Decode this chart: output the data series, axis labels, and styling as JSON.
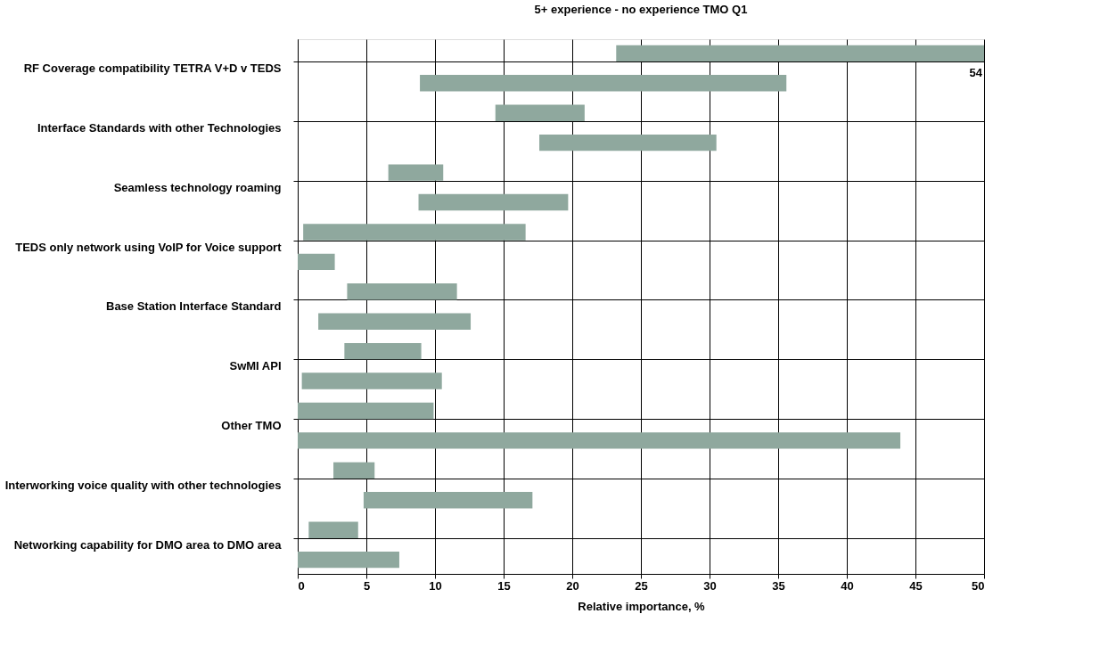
{
  "chart_data": {
    "type": "bar",
    "orientation": "horizontal",
    "title": "5+ experience -  no experience TMO Q1",
    "xlabel": "Relative importance, %",
    "categories": [
      "RF Coverage compatibility TETRA V+D v TEDS",
      null,
      "Interface Standards with other Technologies",
      null,
      "Seamless technology roaming",
      null,
      "TEDS only network using VoIP for Voice support",
      null,
      "Base Station Interface Standard",
      null,
      "SwMI API",
      null,
      "Other TMO",
      null,
      "Interworking voice quality with other technologies",
      null,
      "Networking capability for DMO area to DMO area",
      null
    ],
    "series": [
      {
        "color": "#8fa89e",
        "base": [
          23.2,
          8.9,
          14.4,
          17.6,
          6.6,
          8.8,
          0.4,
          0,
          3.6,
          1.5,
          3.4,
          0.3,
          0,
          0,
          2.6,
          4.8,
          0.8,
          0
        ],
        "values": [
          30.8,
          26.7,
          6.5,
          12.9,
          4.0,
          10.9,
          16.2,
          2.7,
          8.0,
          11.1,
          5.6,
          10.2,
          9.9,
          43.9,
          3.0,
          12.3,
          3.6,
          7.4
        ]
      }
    ],
    "annotations": [
      "54"
    ],
    "xlim": [
      0,
      50
    ],
    "xticks": [
      0,
      5,
      10,
      15,
      20,
      25,
      30,
      35,
      40,
      45,
      50
    ],
    "grid": true
  }
}
